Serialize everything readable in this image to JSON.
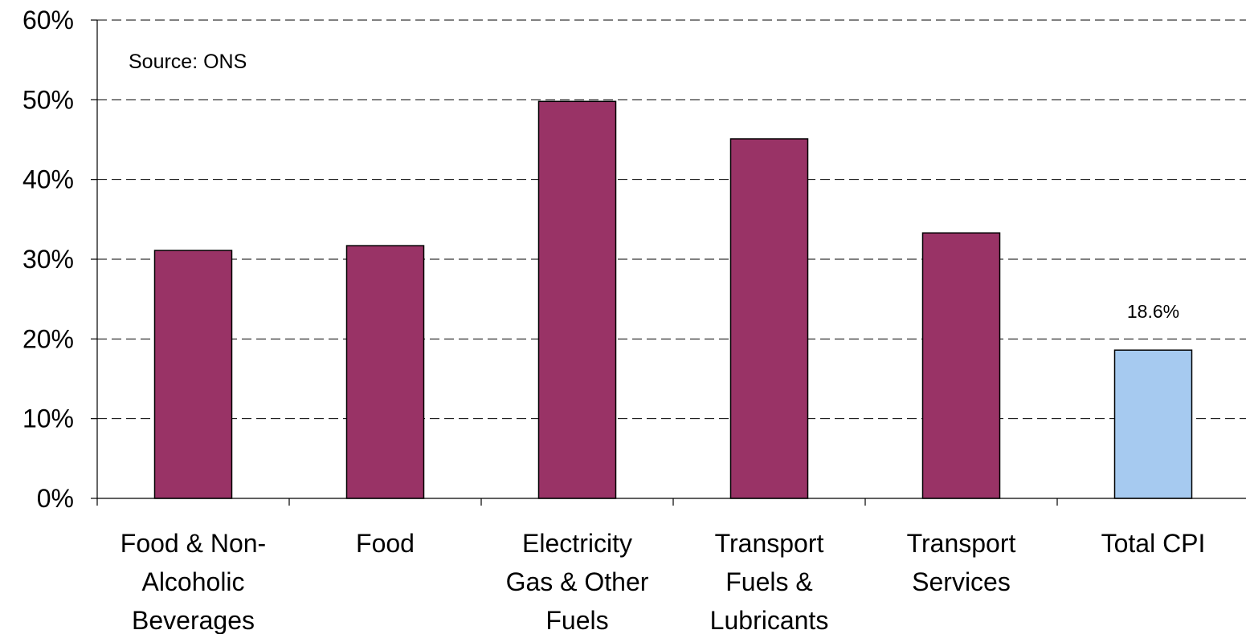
{
  "chart_data": {
    "type": "bar",
    "title": "",
    "xlabel": "",
    "ylabel": "",
    "ylim": [
      0,
      60
    ],
    "yticks": [
      "0%",
      "10%",
      "20%",
      "30%",
      "40%",
      "50%",
      "60%"
    ],
    "grid": "dashed horizontal",
    "annotation": "Source: ONS",
    "categories": [
      [
        "Food & Non-",
        "Alcoholic",
        "Beverages"
      ],
      [
        "Food"
      ],
      [
        "Electricity",
        "Gas & Other",
        "Fuels"
      ],
      [
        "Transport",
        "Fuels &",
        "Lubricants"
      ],
      [
        "Transport",
        "Services"
      ],
      [
        "Total CPI"
      ]
    ],
    "values": [
      31.1,
      31.7,
      49.8,
      45.1,
      33.3,
      18.6
    ],
    "colors": [
      "#993366",
      "#993366",
      "#993366",
      "#993366",
      "#993366",
      "#A6CAF0"
    ],
    "data_labels": [
      null,
      null,
      null,
      null,
      null,
      "18.6%"
    ]
  }
}
